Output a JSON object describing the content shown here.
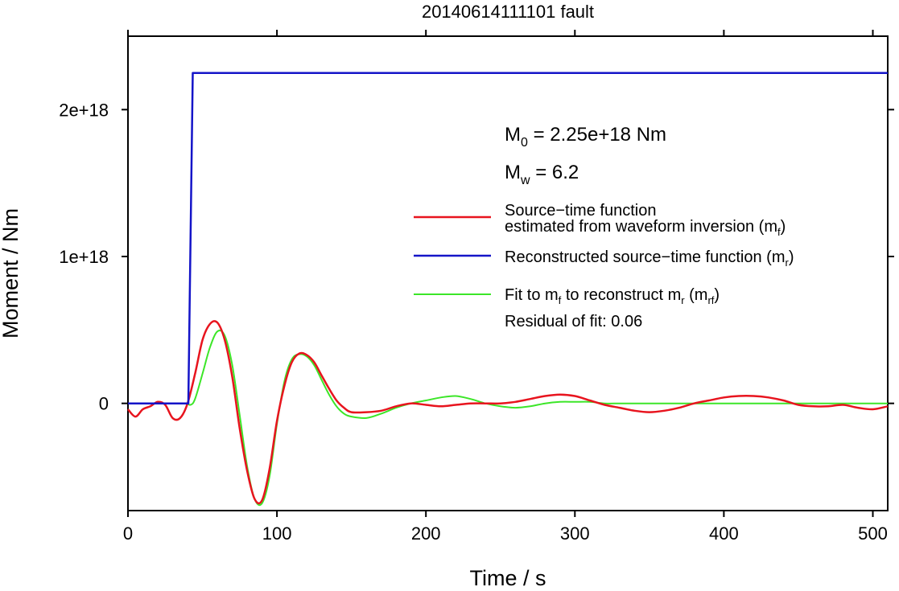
{
  "chart_data": {
    "type": "line",
    "title": "20140614111101 fault",
    "xlabel": "Time / s",
    "ylabel": "Moment / Nm",
    "xlim": [
      0,
      510
    ],
    "ylim": [
      -7.3e+17,
      2.5e+18
    ],
    "x_ticks": [
      0,
      100,
      200,
      300,
      400,
      500
    ],
    "x_tick_labels": [
      "0",
      "100",
      "200",
      "300",
      "400",
      "500"
    ],
    "y_ticks": [
      0,
      1e+18,
      2e+18
    ],
    "y_tick_labels": [
      "0",
      "1e+18",
      "2e+18"
    ],
    "grid": false,
    "legend_position": "right",
    "annotations": {
      "m0_label": "M",
      "m0_sub": "0",
      "m0_value": " = 2.25e+18 Nm",
      "mw_label": "M",
      "mw_sub": "w",
      "mw_value": " = 6.2",
      "residual": "Residual of fit: 0.06"
    },
    "legend": {
      "red_line1": "Source−time function",
      "red_line2": "estimated from waveform inversion (m",
      "red_sub": "f",
      "red_close": ")",
      "blue_text": "Reconstructed source−time function (m",
      "blue_sub": "r",
      "blue_close": ")",
      "green_a": "Fit to m",
      "green_sub1": "f",
      "green_b": " to reconstruct m",
      "green_sub2": "r",
      "green_c": " (m",
      "green_sub3": "rf",
      "green_d": ")"
    },
    "series": [
      {
        "name": "Source−time function estimated from waveform inversion (mf)",
        "color": "#e8141e",
        "x": [
          0,
          5,
          10,
          15,
          20,
          25,
          30,
          35,
          40,
          45,
          50,
          55,
          60,
          65,
          70,
          75,
          80,
          85,
          90,
          95,
          100,
          105,
          110,
          115,
          120,
          125,
          130,
          135,
          140,
          145,
          150,
          160,
          170,
          180,
          190,
          200,
          210,
          220,
          230,
          240,
          250,
          260,
          270,
          280,
          290,
          300,
          310,
          320,
          330,
          340,
          350,
          360,
          370,
          380,
          390,
          400,
          410,
          420,
          430,
          440,
          450,
          460,
          470,
          480,
          490,
          500,
          510
        ],
        "y": [
          -4e+16,
          -9e+16,
          -4e+16,
          -2e+16,
          1e+16,
          -1e+16,
          -1e+17,
          -1e+17,
          0.0,
          2e+17,
          4.3e+17,
          5.4e+17,
          5.5e+17,
          4.3e+17,
          1.8e+17,
          -1.7e+17,
          -4.6e+17,
          -6.5e+17,
          -6.6e+17,
          -4.5e+17,
          -1.2e+17,
          1.2e+17,
          2.8e+17,
          3.4e+17,
          3.3e+17,
          2.8e+17,
          1.9e+17,
          1e+17,
          2e+16,
          -3e+16,
          -6e+16,
          -6e+16,
          -5e+16,
          -2e+16,
          0.0,
          -1e+16,
          -2e+16,
          -1e+16,
          0.0,
          0.0,
          0.0,
          1e+16,
          3e+16,
          5e+16,
          6e+16,
          5e+16,
          2e+16,
          -1e+16,
          -3e+16,
          -5e+16,
          -6e+16,
          -5e+16,
          -3e+16,
          0.0,
          2e+16,
          4e+16,
          5e+16,
          5e+16,
          4e+16,
          2e+16,
          -1e+16,
          -2e+16,
          -2e+16,
          -1e+16,
          -3e+16,
          -4e+16,
          -2e+16
        ]
      },
      {
        "name": "Reconstructed source−time function (mr)",
        "color": "#1414c8",
        "x": [
          0,
          40.5,
          43.5,
          510
        ],
        "y": [
          0,
          0,
          2.25e+18,
          2.25e+18
        ]
      },
      {
        "name": "Fit to mf to reconstruct mr (mrf)",
        "color": "#3ce628",
        "x": [
          0,
          20,
          38,
          42,
          45,
          50,
          55,
          60,
          65,
          70,
          75,
          80,
          85,
          90,
          95,
          100,
          105,
          110,
          115,
          120,
          125,
          130,
          135,
          140,
          145,
          150,
          160,
          170,
          180,
          190,
          200,
          210,
          220,
          230,
          240,
          250,
          260,
          270,
          280,
          290,
          300,
          310,
          320,
          330,
          340,
          350,
          360,
          370,
          380,
          390,
          400,
          420,
          440,
          460,
          480,
          500,
          510
        ],
        "y": [
          0,
          0,
          0,
          -1e+16,
          3e+16,
          2e+17,
          3.8e+17,
          4.9e+17,
          4.6e+17,
          2.6e+17,
          -8e+16,
          -4.3e+17,
          -6.5e+17,
          -6.8e+17,
          -5e+17,
          -1.4e+17,
          1.5e+17,
          3e+17,
          3.35e+17,
          3.2e+17,
          2.6e+17,
          1.6e+17,
          6e+16,
          -2e+16,
          -7e+16,
          -9e+16,
          -1e+17,
          -7e+16,
          -3e+16,
          0.0,
          2e+16,
          4e+16,
          5e+16,
          3e+16,
          0.0,
          -2e+16,
          -3e+16,
          -2e+16,
          0.0,
          1e+16,
          1e+16,
          1e+16,
          0.0,
          0.0,
          0.0,
          0.0,
          0.0,
          0.0,
          0.0,
          0.0,
          0.0,
          0.0,
          0.0,
          0.0,
          0.0,
          0.0,
          0.0
        ]
      }
    ]
  }
}
